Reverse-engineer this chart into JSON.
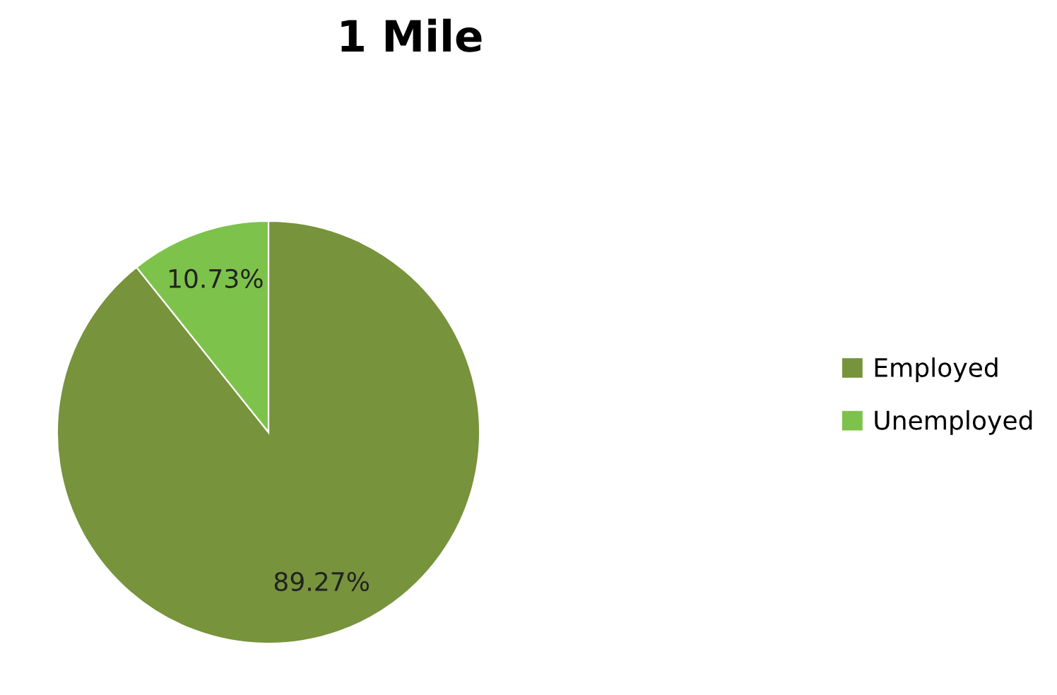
{
  "chart_data": {
    "type": "pie",
    "title": "1 Mile",
    "categories": [
      "Employed",
      "Unemployed"
    ],
    "values": [
      89.27,
      10.73
    ],
    "colors": [
      "#77933c",
      "#7dc24a"
    ],
    "value_labels": [
      "89.27%",
      "10.73%"
    ],
    "legend": "right"
  }
}
